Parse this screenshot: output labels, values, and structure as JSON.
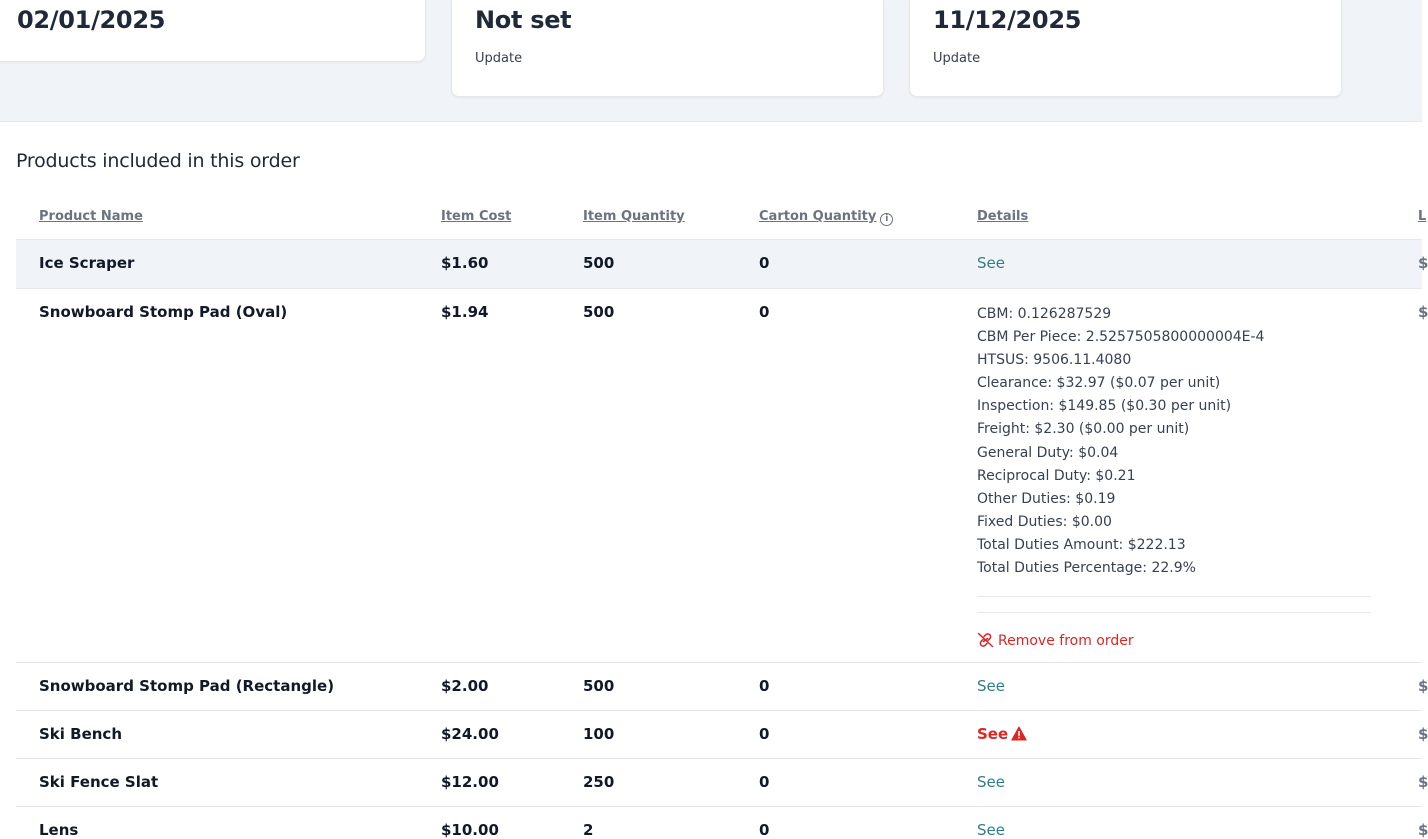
{
  "cards": [
    {
      "value": "02/01/2025"
    },
    {
      "value": "Not set",
      "link": "Update"
    },
    {
      "value": "11/12/2025",
      "link": "Update"
    }
  ],
  "section": {
    "title": "Products included in this order"
  },
  "table": {
    "headers": {
      "product_name": "Product Name",
      "item_cost": "Item Cost",
      "item_quantity": "Item Quantity",
      "carton_quantity": "Carton Quantity",
      "details": "Details",
      "last": "L"
    },
    "rows": [
      {
        "name": "Ice Scraper",
        "cost": "$1.60",
        "qty": "500",
        "carton": "0",
        "details": "See",
        "last": "$"
      },
      {
        "name": "Snowboard Stomp Pad (Oval)",
        "cost": "$1.94",
        "qty": "500",
        "carton": "0",
        "last": "$",
        "detail_lines": [
          "CBM: 0.126287529",
          "CBM Per Piece: 2.5257505800000004E-4",
          "HTSUS: 9506.11.4080",
          "Clearance: $32.97 ($0.07 per unit)",
          "Inspection: $149.85 ($0.30 per unit)",
          "Freight: $2.30 ($0.00 per unit)",
          "General Duty: $0.04",
          "Reciprocal Duty: $0.21",
          "Other Duties: $0.19",
          "Fixed Duties: $0.00",
          "Total Duties Amount: $222.13",
          "Total Duties Percentage: 22.9%"
        ],
        "remove_label": "Remove from order"
      },
      {
        "name": "Snowboard Stomp Pad (Rectangle)",
        "cost": "$2.00",
        "qty": "500",
        "carton": "0",
        "details": "See",
        "last": "$"
      },
      {
        "name": "Ski Bench",
        "cost": "$24.00",
        "qty": "100",
        "carton": "0",
        "details": "See",
        "last": "$"
      },
      {
        "name": "Ski Fence Slat",
        "cost": "$12.00",
        "qty": "250",
        "carton": "0",
        "details": "See",
        "last": "$"
      },
      {
        "name": "Lens",
        "cost": "$10.00",
        "qty": "2",
        "carton": "0",
        "details": "See",
        "last": "$"
      }
    ]
  },
  "colors": {
    "link_teal": "#2f7f86",
    "danger_red": "#dc2626",
    "band_bg": "#f0f4f8"
  },
  "icons": {
    "info": "info-circle-icon",
    "warning": "warning-triangle-icon",
    "remove": "unlink-icon"
  }
}
